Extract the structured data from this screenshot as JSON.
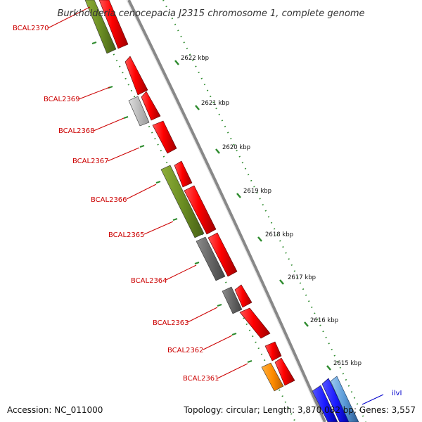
{
  "title": "Burkholderia cenocepacia J2315 chromosome 1, complete genome",
  "accession": "Accession: NC_011000",
  "summary": "Topology: circular; Length: 3,870,082 bp; Genes: 3,557",
  "kbp_ticks": [
    "2622 kbp",
    "2621 kbp",
    "2620 kbp",
    "2619 kbp",
    "2618 kbp",
    "2617 kbp",
    "2616 kbp",
    "2615 kbp"
  ],
  "genes": [
    {
      "label": "BCAL2370",
      "color": "#cc0000"
    },
    {
      "label": "BCAL2369",
      "color": "#cc0000"
    },
    {
      "label": "BCAL2368",
      "color": "#cc0000"
    },
    {
      "label": "BCAL2367",
      "color": "#cc0000"
    },
    {
      "label": "BCAL2366",
      "color": "#cc0000"
    },
    {
      "label": "BCAL2365",
      "color": "#cc0000"
    },
    {
      "label": "BCAL2364",
      "color": "#cc0000"
    },
    {
      "label": "BCAL2363",
      "color": "#cc0000"
    },
    {
      "label": "BCAL2362",
      "color": "#cc0000"
    },
    {
      "label": "BCAL2361",
      "color": "#cc0000"
    },
    {
      "label": "ilvI",
      "color": "#0000cc"
    }
  ],
  "colors": {
    "cds": "#ff0000",
    "cog_green": "#6b8e23",
    "cog_gray": "#6e6e6e",
    "cog_lightgray": "#bdbdbd",
    "cog_orange": "#ff8c00",
    "cog_blue": "#1a1aff",
    "backbone": "#888888",
    "dots": "#2e8b2e"
  }
}
